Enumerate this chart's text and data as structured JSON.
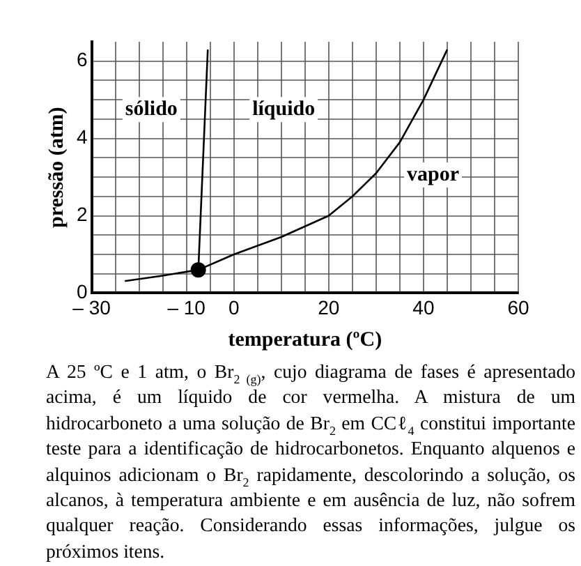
{
  "chart_data": {
    "type": "line",
    "xlabel": "temperatura (ºC)",
    "ylabel": "pressão (atm)",
    "xlim": [
      -30,
      60
    ],
    "ylim": [
      0,
      6.5
    ],
    "xticks": [
      {
        "value": -30,
        "label": "– 30"
      },
      {
        "value": -25,
        "label": null
      },
      {
        "value": -20,
        "label": null
      },
      {
        "value": -15,
        "label": null
      },
      {
        "value": -10,
        "label": "– 10"
      },
      {
        "value": -5,
        "label": null
      },
      0,
      {
        "value": 5,
        "label": null
      },
      {
        "value": 10,
        "label": null
      },
      {
        "value": 15,
        "label": null
      },
      20,
      {
        "value": 25,
        "label": null
      },
      {
        "value": 30,
        "label": null
      },
      {
        "value": 35,
        "label": null
      },
      40,
      {
        "value": 45,
        "label": null
      },
      {
        "value": 50,
        "label": null
      },
      {
        "value": 55,
        "label": null
      },
      60
    ],
    "yticks": [
      0,
      {
        "value": 0.5,
        "label": null
      },
      {
        "value": 1,
        "label": null
      },
      {
        "value": 1.5,
        "label": null
      },
      2,
      {
        "value": 2.5,
        "label": null
      },
      {
        "value": 3,
        "label": null
      },
      {
        "value": 3.5,
        "label": null
      },
      4,
      {
        "value": 4.5,
        "label": null
      },
      {
        "value": 5,
        "label": null
      },
      {
        "value": 5.5,
        "label": null
      },
      6
    ],
    "grid": true,
    "legend": false,
    "marker": "none",
    "line_style": "solid",
    "series": [
      {
        "color": "#000000",
        "x": [
          -23,
          -15,
          -7.5,
          0,
          10,
          20,
          25,
          30,
          35,
          40,
          45
        ],
        "values": [
          0.31,
          0.45,
          0.6,
          1.0,
          1.45,
          2.0,
          2.5,
          3.1,
          3.9,
          5.0,
          6.3
        ]
      },
      {
        "color": "#000000",
        "x": [
          -7.5,
          -5.5
        ],
        "values": [
          0.6,
          6.3
        ]
      },
      {
        "type": "scatter",
        "color": "#000000",
        "x": [
          -7.5
        ],
        "values": [
          0.6
        ],
        "marker": "circle"
      }
    ],
    "annotations": [
      "sólido",
      "líquido",
      "vapor",
      "A 25 ºC e 1 atm, o Br$_{2 (g)}$, cujo diagrama de fases é apresentado acima, é um líquido de cor vermelha. A mistura de um hidrocarboneto a uma solução de Br$_{2}$ em CCℓ$_{4}$ constitui importante teste para a identificação de hidrocarbonetos. Enquanto alquenos e alquinos adicionam o Br$_{2}$ rapidamente, descolorindo a solução, os alcanos, à temperatura ambiente e em ausência de luz, não sofrem qualquer reação. Considerando essas informações, julgue os próximos itens."
    ]
  }
}
